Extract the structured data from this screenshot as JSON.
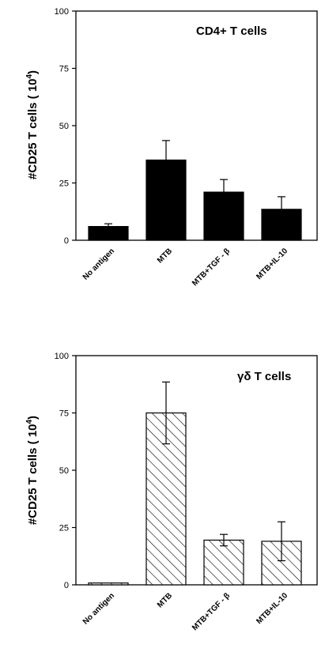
{
  "chart_data": [
    {
      "type": "bar",
      "title": "CD4+ T cells",
      "ylabel": "#CD25  T  cells  ( 10",
      "ylabel_exponent": "4",
      "ylabel_suffix": ")",
      "ylim": [
        0,
        100
      ],
      "yticks": [
        "0",
        "25",
        "50",
        "75",
        "100"
      ],
      "categories": [
        "No antigen",
        "MTB",
        "MTB+TGF  - β",
        "MTB+IL-10"
      ],
      "values": [
        6,
        35,
        21,
        13.5
      ],
      "errors": [
        1.2,
        8.5,
        5.5,
        5.5
      ],
      "fill": "solid",
      "color": "#000000",
      "grid": false
    },
    {
      "type": "bar",
      "title": "γδ T cells",
      "ylabel": "#CD25  T  cells  ( 10",
      "ylabel_exponent": "4",
      "ylabel_suffix": ")",
      "ylim": [
        0,
        100
      ],
      "yticks": [
        "0",
        "25",
        "50",
        "75",
        "100"
      ],
      "categories": [
        "No antigen",
        "MTB",
        "MTB+TGF  - β",
        "MTB+IL-10"
      ],
      "values": [
        0.8,
        75,
        19.5,
        19
      ],
      "errors": [
        0,
        13.5,
        2.5,
        8.5
      ],
      "fill": "hatched",
      "color": "#000000",
      "grid": false
    }
  ]
}
